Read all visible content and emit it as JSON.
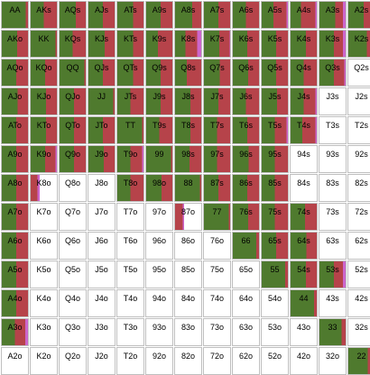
{
  "colors": {
    "raise": "#4f7a2e",
    "call": "#b6434a",
    "allin": "#cc66cc",
    "empty": "#ffffff",
    "border": "#bfbfbf"
  },
  "rows": [
    [
      {
        "label": "AA",
        "mix": [
          0.92,
          0.08,
          0.0
        ]
      },
      {
        "label": "AKs",
        "mix": [
          0.5,
          0.5,
          0.0
        ]
      },
      {
        "label": "AQs",
        "mix": [
          0.62,
          0.38,
          0.0
        ]
      },
      {
        "label": "AJs",
        "mix": [
          0.56,
          0.44,
          0.0
        ]
      },
      {
        "label": "ATs",
        "mix": [
          0.6,
          0.4,
          0.0
        ]
      },
      {
        "label": "A9s",
        "mix": [
          0.55,
          0.45,
          0.0
        ]
      },
      {
        "label": "A8s",
        "mix": [
          0.66,
          0.34,
          0.0
        ]
      },
      {
        "label": "A7s",
        "mix": [
          0.55,
          0.45,
          0.0
        ]
      },
      {
        "label": "A6s",
        "mix": [
          0.5,
          0.5,
          0.0
        ]
      },
      {
        "label": "A5s",
        "mix": [
          0.45,
          0.5,
          0.05
        ]
      },
      {
        "label": "A4s",
        "mix": [
          0.4,
          0.55,
          0.05
        ]
      },
      {
        "label": "A3s",
        "mix": [
          0.6,
          0.3,
          0.1
        ]
      },
      {
        "label": "A2s",
        "mix": [
          0.58,
          0.3,
          0.12
        ]
      }
    ],
    [
      {
        "label": "AKo",
        "mix": [
          0.58,
          0.42,
          0.0
        ]
      },
      {
        "label": "KK",
        "mix": [
          0.95,
          0.05,
          0.0
        ]
      },
      {
        "label": "KQs",
        "mix": [
          0.5,
          0.5,
          0.0
        ]
      },
      {
        "label": "KJs",
        "mix": [
          0.62,
          0.38,
          0.0
        ]
      },
      {
        "label": "KTs",
        "mix": [
          0.6,
          0.4,
          0.0
        ]
      },
      {
        "label": "K9s",
        "mix": [
          0.45,
          0.55,
          0.0
        ]
      },
      {
        "label": "K8s",
        "mix": [
          0.4,
          0.45,
          0.15
        ]
      },
      {
        "label": "K7s",
        "mix": [
          0.58,
          0.4,
          0.02
        ]
      },
      {
        "label": "K6s",
        "mix": [
          0.55,
          0.45,
          0.0
        ]
      },
      {
        "label": "K5s",
        "mix": [
          0.55,
          0.45,
          0.0
        ]
      },
      {
        "label": "K4s",
        "mix": [
          0.58,
          0.42,
          0.0
        ]
      },
      {
        "label": "K3s",
        "mix": [
          0.55,
          0.35,
          0.1
        ]
      },
      {
        "label": "K2s",
        "mix": [
          0.7,
          0.25,
          0.05
        ]
      }
    ],
    [
      {
        "label": "AQo",
        "mix": [
          0.55,
          0.45,
          0.0
        ]
      },
      {
        "label": "KQo",
        "mix": [
          0.55,
          0.45,
          0.0
        ]
      },
      {
        "label": "QQ",
        "mix": [
          0.95,
          0.05,
          0.0
        ]
      },
      {
        "label": "QJs",
        "mix": [
          0.55,
          0.45,
          0.0
        ]
      },
      {
        "label": "QTs",
        "mix": [
          0.6,
          0.4,
          0.0
        ]
      },
      {
        "label": "Q9s",
        "mix": [
          0.55,
          0.45,
          0.0
        ]
      },
      {
        "label": "Q8s",
        "mix": [
          0.45,
          0.55,
          0.0
        ]
      },
      {
        "label": "Q7s",
        "mix": [
          0.6,
          0.4,
          0.0
        ]
      },
      {
        "label": "Q6s",
        "mix": [
          0.58,
          0.42,
          0.0
        ]
      },
      {
        "label": "Q5s",
        "mix": [
          0.55,
          0.45,
          0.0
        ]
      },
      {
        "label": "Q4s",
        "mix": [
          0.5,
          0.5,
          0.0
        ]
      },
      {
        "label": "Q3s",
        "mix": [
          0.55,
          0.4,
          0.05
        ]
      },
      {
        "label": "Q2s",
        "mix": [
          0.0,
          0.0,
          0.0
        ]
      }
    ],
    [
      {
        "label": "AJo",
        "mix": [
          0.6,
          0.4,
          0.0
        ]
      },
      {
        "label": "KJo",
        "mix": [
          0.58,
          0.42,
          0.0
        ]
      },
      {
        "label": "QJo",
        "mix": [
          0.55,
          0.45,
          0.0
        ]
      },
      {
        "label": "JJ",
        "mix": [
          0.95,
          0.05,
          0.0
        ]
      },
      {
        "label": "JTs",
        "mix": [
          0.5,
          0.5,
          0.0
        ]
      },
      {
        "label": "J9s",
        "mix": [
          0.55,
          0.45,
          0.0
        ]
      },
      {
        "label": "J8s",
        "mix": [
          0.58,
          0.42,
          0.0
        ]
      },
      {
        "label": "J7s",
        "mix": [
          0.55,
          0.45,
          0.0
        ]
      },
      {
        "label": "J6s",
        "mix": [
          0.5,
          0.5,
          0.0
        ]
      },
      {
        "label": "J5s",
        "mix": [
          0.58,
          0.42,
          0.0
        ]
      },
      {
        "label": "J4s",
        "mix": [
          0.5,
          0.45,
          0.05
        ]
      },
      {
        "label": "J3s",
        "mix": [
          0.0,
          0.0,
          0.0
        ]
      },
      {
        "label": "J2s",
        "mix": [
          0.0,
          0.0,
          0.0
        ]
      }
    ],
    [
      {
        "label": "ATo",
        "mix": [
          0.55,
          0.45,
          0.0
        ]
      },
      {
        "label": "KTo",
        "mix": [
          0.58,
          0.42,
          0.0
        ]
      },
      {
        "label": "QTo",
        "mix": [
          0.55,
          0.45,
          0.0
        ]
      },
      {
        "label": "JTo",
        "mix": [
          0.55,
          0.45,
          0.0
        ]
      },
      {
        "label": "TT",
        "mix": [
          0.95,
          0.05,
          0.0
        ]
      },
      {
        "label": "T9s",
        "mix": [
          0.5,
          0.5,
          0.0
        ]
      },
      {
        "label": "T8s",
        "mix": [
          0.58,
          0.42,
          0.0
        ]
      },
      {
        "label": "T7s",
        "mix": [
          0.5,
          0.5,
          0.0
        ]
      },
      {
        "label": "T6s",
        "mix": [
          0.55,
          0.45,
          0.0
        ]
      },
      {
        "label": "T5s",
        "mix": [
          0.5,
          0.45,
          0.05
        ]
      },
      {
        "label": "T4s",
        "mix": [
          0.45,
          0.5,
          0.05
        ]
      },
      {
        "label": "T3s",
        "mix": [
          0.0,
          0.0,
          0.0
        ]
      },
      {
        "label": "T2s",
        "mix": [
          0.0,
          0.0,
          0.0
        ]
      }
    ],
    [
      {
        "label": "A9o",
        "mix": [
          0.55,
          0.45,
          0.0
        ]
      },
      {
        "label": "K9o",
        "mix": [
          0.55,
          0.4,
          0.05
        ]
      },
      {
        "label": "Q9o",
        "mix": [
          0.55,
          0.45,
          0.0
        ]
      },
      {
        "label": "J9o",
        "mix": [
          0.58,
          0.42,
          0.0
        ]
      },
      {
        "label": "T9o",
        "mix": [
          0.5,
          0.45,
          0.05
        ]
      },
      {
        "label": "99",
        "mix": [
          0.95,
          0.05,
          0.0
        ]
      },
      {
        "label": "98s",
        "mix": [
          0.55,
          0.45,
          0.0
        ]
      },
      {
        "label": "97s",
        "mix": [
          0.5,
          0.5,
          0.0
        ]
      },
      {
        "label": "96s",
        "mix": [
          0.6,
          0.4,
          0.0
        ]
      },
      {
        "label": "95s",
        "mix": [
          0.5,
          0.5,
          0.0
        ]
      },
      {
        "label": "94s",
        "mix": [
          0.0,
          0.0,
          0.0
        ]
      },
      {
        "label": "93s",
        "mix": [
          0.0,
          0.0,
          0.0
        ]
      },
      {
        "label": "92s",
        "mix": [
          0.0,
          0.0,
          0.0
        ]
      }
    ],
    [
      {
        "label": "A8o",
        "mix": [
          0.55,
          0.45,
          0.0
        ]
      },
      {
        "label": "K8o",
        "mix": [
          0.0,
          0.25,
          0.1
        ]
      },
      {
        "label": "Q8o",
        "mix": [
          0.0,
          0.0,
          0.0
        ]
      },
      {
        "label": "J8o",
        "mix": [
          0.0,
          0.0,
          0.0
        ]
      },
      {
        "label": "T8o",
        "mix": [
          0.5,
          0.5,
          0.0
        ]
      },
      {
        "label": "98o",
        "mix": [
          0.58,
          0.42,
          0.0
        ]
      },
      {
        "label": "88",
        "mix": [
          0.95,
          0.05,
          0.0
        ]
      },
      {
        "label": "87s",
        "mix": [
          0.55,
          0.45,
          0.0
        ]
      },
      {
        "label": "86s",
        "mix": [
          0.55,
          0.45,
          0.0
        ]
      },
      {
        "label": "85s",
        "mix": [
          0.5,
          0.5,
          0.0
        ]
      },
      {
        "label": "84s",
        "mix": [
          0.0,
          0.0,
          0.0
        ]
      },
      {
        "label": "83s",
        "mix": [
          0.0,
          0.0,
          0.0
        ]
      },
      {
        "label": "82s",
        "mix": [
          0.0,
          0.0,
          0.0
        ]
      }
    ],
    [
      {
        "label": "A7o",
        "mix": [
          0.55,
          0.45,
          0.0
        ]
      },
      {
        "label": "K7o",
        "mix": [
          0.0,
          0.0,
          0.0
        ]
      },
      {
        "label": "Q7o",
        "mix": [
          0.0,
          0.0,
          0.0
        ]
      },
      {
        "label": "J7o",
        "mix": [
          0.0,
          0.0,
          0.0
        ]
      },
      {
        "label": "T7o",
        "mix": [
          0.0,
          0.0,
          0.0
        ]
      },
      {
        "label": "97o",
        "mix": [
          0.0,
          0.0,
          0.0
        ]
      },
      {
        "label": "87o",
        "mix": [
          0.0,
          0.3,
          0.05
        ]
      },
      {
        "label": "77",
        "mix": [
          0.95,
          0.05,
          0.0
        ]
      },
      {
        "label": "76s",
        "mix": [
          0.58,
          0.42,
          0.0
        ]
      },
      {
        "label": "75s",
        "mix": [
          0.5,
          0.5,
          0.0
        ]
      },
      {
        "label": "74s",
        "mix": [
          0.55,
          0.45,
          0.0
        ]
      },
      {
        "label": "73s",
        "mix": [
          0.0,
          0.0,
          0.0
        ]
      },
      {
        "label": "72s",
        "mix": [
          0.0,
          0.0,
          0.0
        ]
      }
    ],
    [
      {
        "label": "A6o",
        "mix": [
          0.55,
          0.45,
          0.0
        ]
      },
      {
        "label": "K6o",
        "mix": [
          0.0,
          0.0,
          0.0
        ]
      },
      {
        "label": "Q6o",
        "mix": [
          0.0,
          0.0,
          0.0
        ]
      },
      {
        "label": "J6o",
        "mix": [
          0.0,
          0.0,
          0.0
        ]
      },
      {
        "label": "T6o",
        "mix": [
          0.0,
          0.0,
          0.0
        ]
      },
      {
        "label": "96o",
        "mix": [
          0.0,
          0.0,
          0.0
        ]
      },
      {
        "label": "86o",
        "mix": [
          0.0,
          0.0,
          0.0
        ]
      },
      {
        "label": "76o",
        "mix": [
          0.0,
          0.0,
          0.0
        ]
      },
      {
        "label": "66",
        "mix": [
          0.9,
          0.1,
          0.0
        ]
      },
      {
        "label": "65s",
        "mix": [
          0.55,
          0.45,
          0.0
        ]
      },
      {
        "label": "64s",
        "mix": [
          0.6,
          0.4,
          0.0
        ]
      },
      {
        "label": "63s",
        "mix": [
          0.0,
          0.0,
          0.0
        ]
      },
      {
        "label": "62s",
        "mix": [
          0.0,
          0.0,
          0.0
        ]
      }
    ],
    [
      {
        "label": "A5o",
        "mix": [
          0.55,
          0.45,
          0.0
        ]
      },
      {
        "label": "K5o",
        "mix": [
          0.0,
          0.0,
          0.0
        ]
      },
      {
        "label": "Q5o",
        "mix": [
          0.0,
          0.0,
          0.0
        ]
      },
      {
        "label": "J5o",
        "mix": [
          0.0,
          0.0,
          0.0
        ]
      },
      {
        "label": "T5o",
        "mix": [
          0.0,
          0.0,
          0.0
        ]
      },
      {
        "label": "95o",
        "mix": [
          0.0,
          0.0,
          0.0
        ]
      },
      {
        "label": "85o",
        "mix": [
          0.0,
          0.0,
          0.0
        ]
      },
      {
        "label": "75o",
        "mix": [
          0.0,
          0.0,
          0.0
        ]
      },
      {
        "label": "65o",
        "mix": [
          0.0,
          0.0,
          0.0
        ]
      },
      {
        "label": "55",
        "mix": [
          0.9,
          0.1,
          0.0
        ]
      },
      {
        "label": "54s",
        "mix": [
          0.58,
          0.42,
          0.0
        ]
      },
      {
        "label": "53s",
        "mix": [
          0.55,
          0.35,
          0.1
        ]
      },
      {
        "label": "52s",
        "mix": [
          0.0,
          0.0,
          0.0
        ]
      }
    ],
    [
      {
        "label": "A4o",
        "mix": [
          0.55,
          0.45,
          0.0
        ]
      },
      {
        "label": "K4o",
        "mix": [
          0.0,
          0.0,
          0.0
        ]
      },
      {
        "label": "Q4o",
        "mix": [
          0.0,
          0.0,
          0.0
        ]
      },
      {
        "label": "J4o",
        "mix": [
          0.0,
          0.0,
          0.0
        ]
      },
      {
        "label": "T4o",
        "mix": [
          0.0,
          0.0,
          0.0
        ]
      },
      {
        "label": "94o",
        "mix": [
          0.0,
          0.0,
          0.0
        ]
      },
      {
        "label": "84o",
        "mix": [
          0.0,
          0.0,
          0.0
        ]
      },
      {
        "label": "74o",
        "mix": [
          0.0,
          0.0,
          0.0
        ]
      },
      {
        "label": "64o",
        "mix": [
          0.0,
          0.0,
          0.0
        ]
      },
      {
        "label": "54o",
        "mix": [
          0.0,
          0.0,
          0.0
        ]
      },
      {
        "label": "44",
        "mix": [
          0.9,
          0.1,
          0.0
        ]
      },
      {
        "label": "43s",
        "mix": [
          0.0,
          0.0,
          0.0
        ]
      },
      {
        "label": "42s",
        "mix": [
          0.0,
          0.0,
          0.0
        ]
      }
    ],
    [
      {
        "label": "A3o",
        "mix": [
          0.5,
          0.4,
          0.1
        ]
      },
      {
        "label": "K3o",
        "mix": [
          0.0,
          0.0,
          0.0
        ]
      },
      {
        "label": "Q3o",
        "mix": [
          0.0,
          0.0,
          0.0
        ]
      },
      {
        "label": "J3o",
        "mix": [
          0.0,
          0.0,
          0.0
        ]
      },
      {
        "label": "T3o",
        "mix": [
          0.0,
          0.0,
          0.0
        ]
      },
      {
        "label": "93o",
        "mix": [
          0.0,
          0.0,
          0.0
        ]
      },
      {
        "label": "83o",
        "mix": [
          0.0,
          0.0,
          0.0
        ]
      },
      {
        "label": "73o",
        "mix": [
          0.0,
          0.0,
          0.0
        ]
      },
      {
        "label": "63o",
        "mix": [
          0.0,
          0.0,
          0.0
        ]
      },
      {
        "label": "53o",
        "mix": [
          0.0,
          0.0,
          0.0
        ]
      },
      {
        "label": "43o",
        "mix": [
          0.0,
          0.0,
          0.0
        ]
      },
      {
        "label": "33",
        "mix": [
          0.85,
          0.15,
          0.0
        ]
      },
      {
        "label": "32s",
        "mix": [
          0.0,
          0.0,
          0.0
        ]
      }
    ],
    [
      {
        "label": "A2o",
        "mix": [
          0.0,
          0.0,
          0.0
        ]
      },
      {
        "label": "K2o",
        "mix": [
          0.0,
          0.0,
          0.0
        ]
      },
      {
        "label": "Q2o",
        "mix": [
          0.0,
          0.0,
          0.0
        ]
      },
      {
        "label": "J2o",
        "mix": [
          0.0,
          0.0,
          0.0
        ]
      },
      {
        "label": "T2o",
        "mix": [
          0.0,
          0.0,
          0.0
        ]
      },
      {
        "label": "92o",
        "mix": [
          0.0,
          0.0,
          0.0
        ]
      },
      {
        "label": "82o",
        "mix": [
          0.0,
          0.0,
          0.0
        ]
      },
      {
        "label": "72o",
        "mix": [
          0.0,
          0.0,
          0.0
        ]
      },
      {
        "label": "62o",
        "mix": [
          0.0,
          0.0,
          0.0
        ]
      },
      {
        "label": "52o",
        "mix": [
          0.0,
          0.0,
          0.0
        ]
      },
      {
        "label": "42o",
        "mix": [
          0.0,
          0.0,
          0.0
        ]
      },
      {
        "label": "32o",
        "mix": [
          0.0,
          0.0,
          0.0
        ]
      },
      {
        "label": "22",
        "mix": [
          0.75,
          0.1,
          0.15
        ]
      }
    ]
  ]
}
